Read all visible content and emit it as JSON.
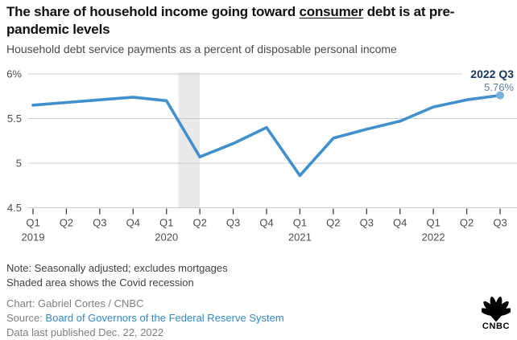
{
  "header": {
    "title_pre": "The share of household income going toward ",
    "title_underlined": "consumer",
    "title_post": " debt is at pre-pandemic levels",
    "subtitle": "Household debt service payments as a percent of disposable personal income"
  },
  "chart_data": {
    "type": "line",
    "categories": [
      "Q1 2019",
      "Q2 2019",
      "Q3 2019",
      "Q4 2019",
      "Q1 2020",
      "Q2 2020",
      "Q3 2020",
      "Q4 2020",
      "Q1 2021",
      "Q2 2021",
      "Q3 2021",
      "Q4 2021",
      "Q1 2022",
      "Q2 2022",
      "Q3 2022"
    ],
    "x_tick_labels": [
      "Q1",
      "Q2",
      "Q3",
      "Q4",
      "Q1",
      "Q2",
      "Q3",
      "Q4",
      "Q1",
      "Q2",
      "Q3",
      "Q4",
      "Q1",
      "Q2",
      "Q3"
    ],
    "year_labels": [
      {
        "index": 0,
        "label": "2019"
      },
      {
        "index": 4,
        "label": "2020"
      },
      {
        "index": 8,
        "label": "2021"
      },
      {
        "index": 12,
        "label": "2022"
      }
    ],
    "values": [
      5.65,
      5.68,
      5.71,
      5.74,
      5.7,
      5.07,
      5.22,
      5.4,
      4.86,
      5.28,
      5.38,
      5.47,
      5.63,
      5.71,
      5.76
    ],
    "unit": "percent",
    "ylim": [
      4.5,
      6.0
    ],
    "y_ticks": [
      {
        "value": 6.0,
        "label": "6%"
      },
      {
        "value": 5.5,
        "label": "5.5"
      },
      {
        "value": 5.0,
        "label": "5"
      },
      {
        "value": 4.5,
        "label": "4.5"
      }
    ],
    "grid": true,
    "legend": "none",
    "end_point": {
      "label": "2022 Q3",
      "value_label": "5.76%",
      "value": 5.76
    },
    "shaded_region": {
      "label": "Covid recession",
      "from_index": 4.36,
      "to_index": 5.0
    }
  },
  "footer": {
    "note_line1": "Note: Seasonally adjusted; excludes mortgages",
    "note_line2": "Shaded area shows the Covid recession",
    "chart_credit": "Chart: Gabriel Cortes / CNBC",
    "source_label": "Source: ",
    "source_link": "Board of Governors of the Federal Reserve System",
    "data_published": "Data last published Dec. 22, 2022",
    "logo_text": "CNBC"
  },
  "colors": {
    "line": "#3f90cc",
    "end_dot": "#79b1dd",
    "end_label": "#14355c",
    "end_value": "#5d7f9d",
    "gridline": "#cccccc",
    "recession_band": "#e9e9e9",
    "axis_text": "#4d4d4d",
    "tick": "#3d3d3d",
    "title": "#111111",
    "subtitle": "#4a4a4a",
    "note_text": "#414141",
    "credit_text": "#7e7e7e",
    "link": "#3387c6",
    "logo": "#000000"
  }
}
